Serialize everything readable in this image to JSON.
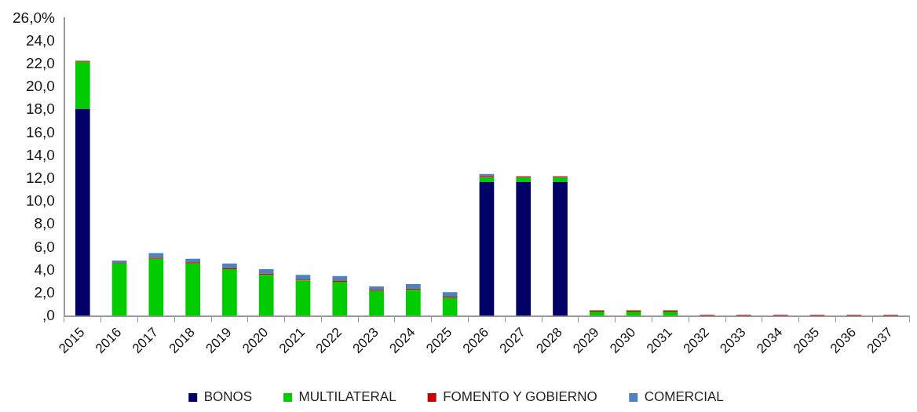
{
  "chart_data": {
    "type": "bar",
    "stacked": true,
    "grid": false,
    "legend": "bottom",
    "categories": [
      "2015",
      "2016",
      "2017",
      "2018",
      "2019",
      "2020",
      "2021",
      "2022",
      "2023",
      "2024",
      "2025",
      "2026",
      "2027",
      "2028",
      "2029",
      "2030",
      "2031",
      "2032",
      "2033",
      "2034",
      "2035",
      "2036",
      "2037"
    ],
    "series": [
      {
        "name": "BONOS",
        "color": "#000066",
        "values": [
          18.1,
          0,
          0,
          0,
          0,
          0,
          0,
          0,
          0,
          0,
          0,
          11.7,
          11.7,
          11.7,
          0,
          0,
          0,
          0,
          0,
          0,
          0,
          0,
          0
        ]
      },
      {
        "name": "MULTILATERAL",
        "color": "#00cc00",
        "values": [
          4.1,
          4.6,
          5.0,
          4.6,
          4.1,
          3.6,
          3.1,
          3.0,
          2.2,
          2.3,
          1.6,
          0.4,
          0.4,
          0.4,
          0.4,
          0.4,
          0.4,
          0,
          0,
          0,
          0,
          0,
          0
        ]
      },
      {
        "name": "FOMENTO Y GOBIERNO",
        "color": "#cc0000",
        "values": [
          0.1,
          0.05,
          0.1,
          0.1,
          0.1,
          0.1,
          0.1,
          0.1,
          0.1,
          0.1,
          0.1,
          0.1,
          0.1,
          0.1,
          0.1,
          0.1,
          0.1,
          0.1,
          0.1,
          0.1,
          0.1,
          0.1,
          0.1
        ]
      },
      {
        "name": "COMERCIAL",
        "color": "#4f81bd",
        "values": [
          0,
          0.2,
          0.4,
          0.3,
          0.4,
          0.4,
          0.4,
          0.4,
          0.3,
          0.4,
          0.4,
          0.2,
          0,
          0,
          0,
          0,
          0,
          0,
          0,
          0,
          0,
          0,
          0
        ]
      }
    ],
    "ylim": [
      0,
      26
    ],
    "yticks": [
      {
        "value": 0,
        "label": ",0"
      },
      {
        "value": 2,
        "label": "2,0"
      },
      {
        "value": 4,
        "label": "4,0"
      },
      {
        "value": 6,
        "label": "6,0"
      },
      {
        "value": 8,
        "label": "8,0"
      },
      {
        "value": 10,
        "label": "10,0"
      },
      {
        "value": 12,
        "label": "12,0"
      },
      {
        "value": 14,
        "label": "14,0"
      },
      {
        "value": 16,
        "label": "16,0"
      },
      {
        "value": 18,
        "label": "18,0"
      },
      {
        "value": 20,
        "label": "20,0"
      },
      {
        "value": 22,
        "label": "22,0"
      },
      {
        "value": 24,
        "label": "24,0"
      },
      {
        "value": 26,
        "label": "26,0%"
      }
    ]
  }
}
